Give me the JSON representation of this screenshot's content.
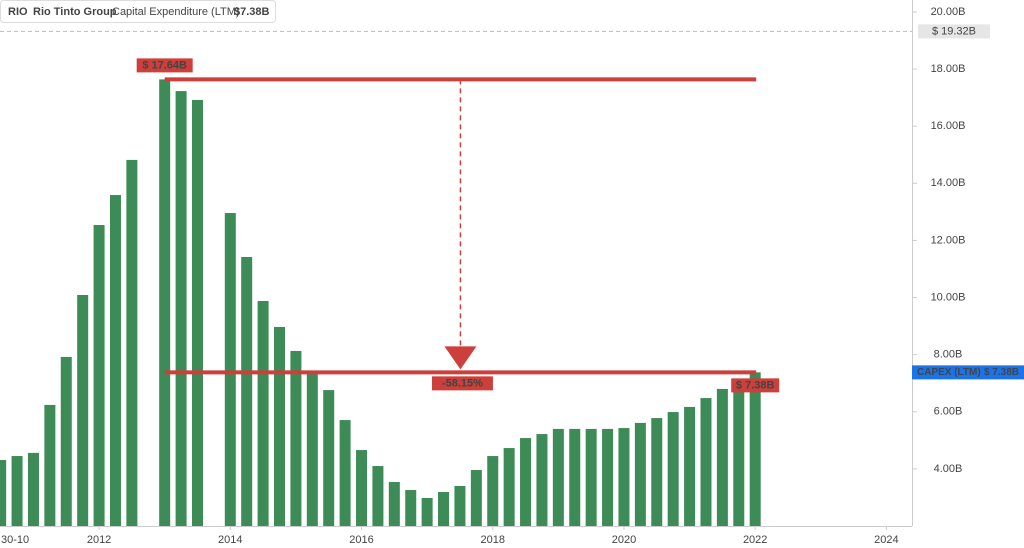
{
  "header": {
    "ticker": "RIO",
    "company": "Rio Tinto Group",
    "value": {
      "value": 7.38,
      "label": "$7.38B"
    }
  },
  "chart_data": {
    "type": "bar",
    "x_start_label": "30-10",
    "x": [
      2010.5,
      2010.75,
      2011,
      2011.25,
      2011.5,
      2011.75,
      2012,
      2012.25,
      2012.5,
      2013,
      2013.25,
      2013.5,
      2014,
      2014.25,
      2014.5,
      2014.75,
      2015,
      2015.25,
      2015.5,
      2015.75,
      2016,
      2016.25,
      2016.5,
      2016.75,
      2017,
      2017.25,
      2017.5,
      2017.75,
      2018,
      2018.25,
      2018.5,
      2018.75,
      2019,
      2019.25,
      2019.5,
      2019.75,
      2020,
      2020.25,
      2020.5,
      2020.75,
      2021,
      2021.25,
      2021.5,
      2021.75,
      2022
    ],
    "series": [
      {
        "name": "Capital Expenditure (LTM)",
        "color": "#3d8b57",
        "values": [
          4.31,
          4.45,
          4.56,
          6.24,
          7.92,
          10.09,
          12.54,
          13.59,
          14.82,
          17.64,
          17.23,
          16.92,
          12.96,
          11.42,
          9.88,
          8.97,
          8.13,
          7.39,
          6.76,
          5.71,
          4.66,
          4.1,
          3.54,
          3.26,
          2.98,
          3.19,
          3.4,
          3.96,
          4.45,
          4.73,
          5.08,
          5.22,
          5.4,
          5.4,
          5.4,
          5.4,
          5.43,
          5.61,
          5.78,
          5.99,
          6.17,
          6.48,
          6.8,
          7.11,
          7.38
        ]
      }
    ],
    "xlim": [
      2010.49,
      2024.39
    ],
    "xticks": [
      2012,
      2014,
      2016,
      2018,
      2020,
      2022,
      2024
    ],
    "ylim": [
      2,
      20.42
    ],
    "yticks": [
      {
        "value": 4,
        "label": "4.00B"
      },
      {
        "value": 6,
        "label": "6.00B"
      },
      {
        "value": 8,
        "label": "8.00B"
      },
      {
        "value": 10,
        "label": "10.00B"
      },
      {
        "value": 12,
        "label": "12.00B"
      },
      {
        "value": 14,
        "label": "14.00B"
      },
      {
        "value": 16,
        "label": "16.00B"
      },
      {
        "value": 18,
        "label": "18.00B"
      },
      {
        "value": 20,
        "label": "20.00B"
      }
    ],
    "annotations": {
      "high": {
        "value": 17.64,
        "label": "$ 17.64B"
      },
      "current": {
        "value": 7.38,
        "label": "$ 7.38B"
      },
      "change": {
        "value": -58.15,
        "label": "-58.15%"
      },
      "max_line": {
        "value": 19.32,
        "label": "$ 19.32B"
      },
      "tag": {
        "name": "CAPEX (LTM)",
        "value": 7.38,
        "label": "$ 7.38B"
      }
    },
    "annotation_color": "#cc3f3a"
  }
}
